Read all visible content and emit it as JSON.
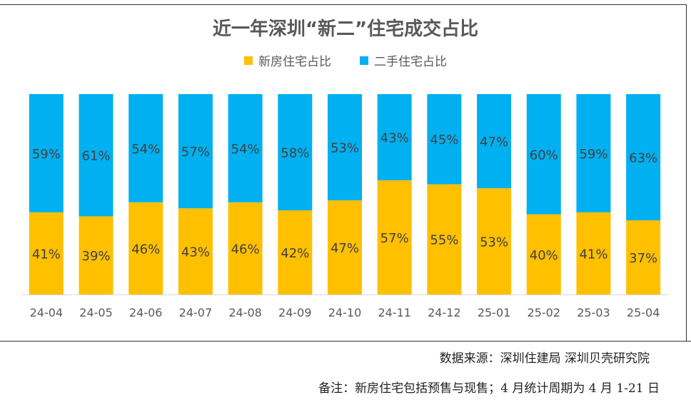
{
  "chart_data": {
    "type": "bar",
    "stacked": true,
    "title": "近一年深圳“新二”住宅成交占比",
    "categories": [
      "24-04",
      "24-05",
      "24-06",
      "24-07",
      "24-08",
      "24-09",
      "24-10",
      "24-11",
      "24-12",
      "25-01",
      "25-02",
      "25-03",
      "25-04"
    ],
    "series": [
      {
        "name": "新房住宅占比",
        "color": "#FFC000",
        "values": [
          41,
          39,
          46,
          43,
          46,
          42,
          47,
          57,
          55,
          53,
          40,
          41,
          37
        ],
        "labels": [
          "41%",
          "39%",
          "46%",
          "43%",
          "46%",
          "42%",
          "47%",
          "57%",
          "55%",
          "53%",
          "40%",
          "41%",
          "37%"
        ]
      },
      {
        "name": "二手住宅占比",
        "color": "#00B0F0",
        "values": [
          59,
          61,
          54,
          57,
          54,
          58,
          53,
          43,
          45,
          47,
          60,
          59,
          63
        ],
        "labels": [
          "59%",
          "61%",
          "54%",
          "57%",
          "54%",
          "58%",
          "53%",
          "43%",
          "45%",
          "47%",
          "60%",
          "59%",
          "63%"
        ]
      }
    ],
    "ylim": [
      0,
      100
    ],
    "legend_position": "top"
  },
  "footer": {
    "source": "数据来源：深圳住建局  深圳贝壳研究院",
    "note": "备注：新房住宅包括预售与现售；4 月统计周期为 4 月 1-21 日"
  }
}
